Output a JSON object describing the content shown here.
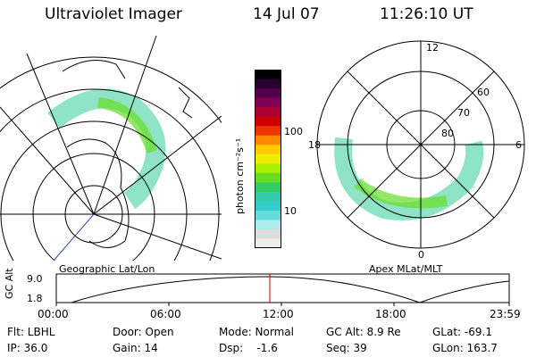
{
  "header": {
    "title": "Ultraviolet Imager",
    "date": "14 Jul 07",
    "time": "11:26:10 UT"
  },
  "colorbar": {
    "unit_label": "photon cm⁻²s⁻¹",
    "ticks": [
      "100",
      "10"
    ],
    "colors": [
      "#000000",
      "#2a0033",
      "#55004a",
      "#800055",
      "#aa0033",
      "#cc0000",
      "#ee3300",
      "#ff8800",
      "#ffcc00",
      "#eeee00",
      "#aaee00",
      "#66dd22",
      "#33cc66",
      "#33ccaa",
      "#33cccc",
      "#66dddd",
      "#aaeeee",
      "#dddddd",
      "#eeeeee"
    ]
  },
  "left_map": {
    "caption": "Geographic Lat/Lon"
  },
  "right_map": {
    "caption": "Apex MLat/MLT",
    "mlt_labels": {
      "top": "12",
      "left": "18",
      "right": "6",
      "bottom": "0"
    },
    "lat_labels": [
      "60",
      "70",
      "80"
    ]
  },
  "timeline": {
    "axis_label": "GC Alt",
    "y_ticks": [
      "9.0",
      "1.8"
    ],
    "x_ticks": [
      "00:00",
      "06:00",
      "12:00",
      "18:00",
      "23:59"
    ],
    "current_marker_color": "#cc0000"
  },
  "status": {
    "flt": "Flt: LBHL",
    "ip": "IP: 36.0",
    "door": "Door: Open",
    "gain": "Gain: 14",
    "mode": "Mode: Normal",
    "dsp": "Dsp:    -1.6",
    "gc_alt": "GC Alt: 8.9 Re",
    "seq": "Seq: 39",
    "glat": "GLat: -69.1",
    "glon": "GLon: 163.7"
  }
}
